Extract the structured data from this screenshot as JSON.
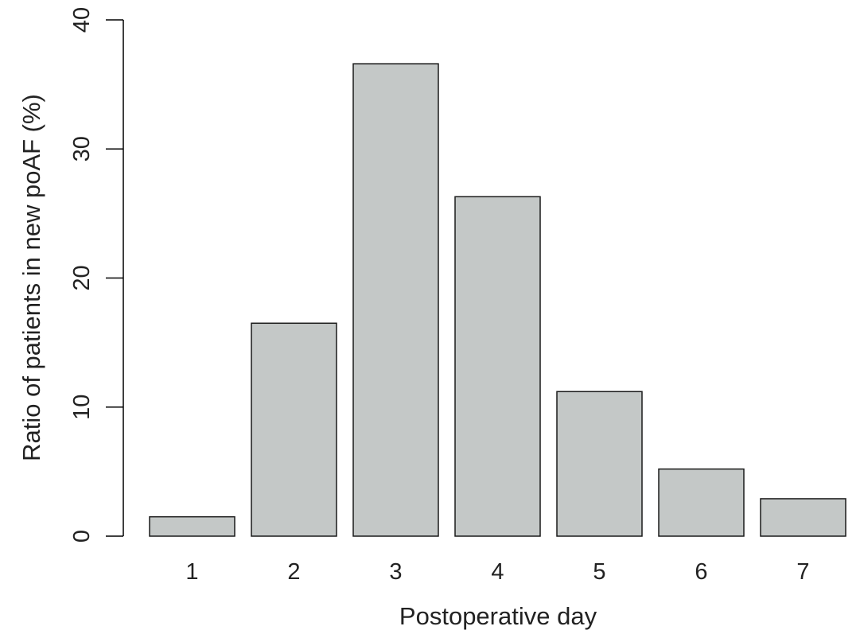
{
  "chart_data": {
    "type": "bar",
    "categories": [
      "1",
      "2",
      "3",
      "4",
      "5",
      "6",
      "7"
    ],
    "values": [
      1.5,
      16.5,
      36.6,
      26.3,
      11.2,
      5.2,
      2.9
    ],
    "title": "",
    "xlabel": "Postoperative day",
    "ylabel": "Ratio of patients in new poAF (%)",
    "ylim": [
      0,
      40
    ],
    "yticks": [
      0,
      10,
      20,
      30,
      40
    ],
    "bar_color": "#c4c8c7",
    "bar_edge_color": "#1a1a1a",
    "grid": false,
    "legend": "none"
  }
}
